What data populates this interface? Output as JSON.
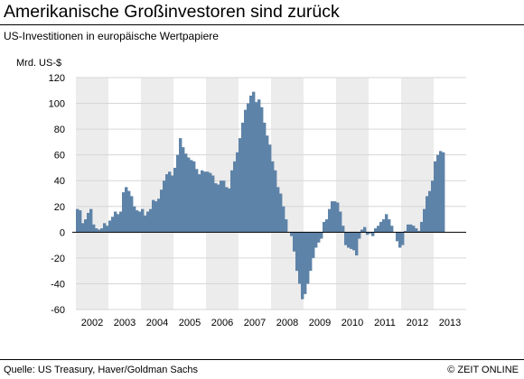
{
  "header": {
    "title": "Amerikanische Großinvestoren sind zurück",
    "subtitle": "US-Investitionen in europäische Wertpapiere"
  },
  "footer": {
    "source": "Quelle: US Treasury, Haver/Goldman Sachs",
    "copyright": "© ZEIT ONLINE"
  },
  "colors": {
    "bar": "#5e83a8",
    "band": "#ececec",
    "grid": "#d6d6d6",
    "axis": "#000000"
  },
  "chart_data": {
    "type": "bar",
    "ylabel": "Mrd. US-$",
    "ylim": [
      -60,
      120
    ],
    "yticks": [
      -60,
      -40,
      -20,
      0,
      20,
      40,
      60,
      80,
      100,
      120
    ],
    "grid": true,
    "alternating_year_bands": true,
    "year_labels": [
      "2002",
      "2003",
      "2004",
      "2005",
      "2006",
      "2007",
      "2008",
      "2009",
      "2010",
      "2011",
      "2012",
      "2013"
    ],
    "start": "2002-01",
    "end": "2013-08",
    "frequency": "monthly",
    "values": [
      18,
      17,
      7,
      10,
      15,
      18,
      6,
      3,
      2,
      3,
      7,
      5,
      9,
      12,
      16,
      14,
      16,
      31,
      35,
      32,
      28,
      20,
      17,
      16,
      18,
      13,
      16,
      18,
      25,
      24,
      26,
      33,
      40,
      45,
      47,
      44,
      50,
      60,
      73,
      66,
      61,
      58,
      56,
      55,
      49,
      45,
      48,
      47,
      47,
      46,
      44,
      38,
      37,
      40,
      40,
      35,
      34,
      48,
      55,
      62,
      73,
      85,
      95,
      100,
      106,
      109,
      101,
      103,
      97,
      85,
      75,
      68,
      55,
      48,
      35,
      30,
      20,
      10,
      0,
      -3,
      -15,
      -30,
      -40,
      -52,
      -48,
      -40,
      -30,
      -20,
      -12,
      -8,
      -5,
      8,
      10,
      18,
      24,
      24,
      23,
      16,
      5,
      -10,
      -12,
      -13,
      -14,
      -18,
      -5,
      2,
      4,
      -2,
      -1,
      -3,
      3,
      5,
      8,
      10,
      14,
      10,
      5,
      0,
      -7,
      -12,
      -10,
      1,
      6,
      6,
      5,
      3,
      1,
      8,
      18,
      28,
      32,
      40,
      55,
      60,
      63,
      62
    ]
  }
}
